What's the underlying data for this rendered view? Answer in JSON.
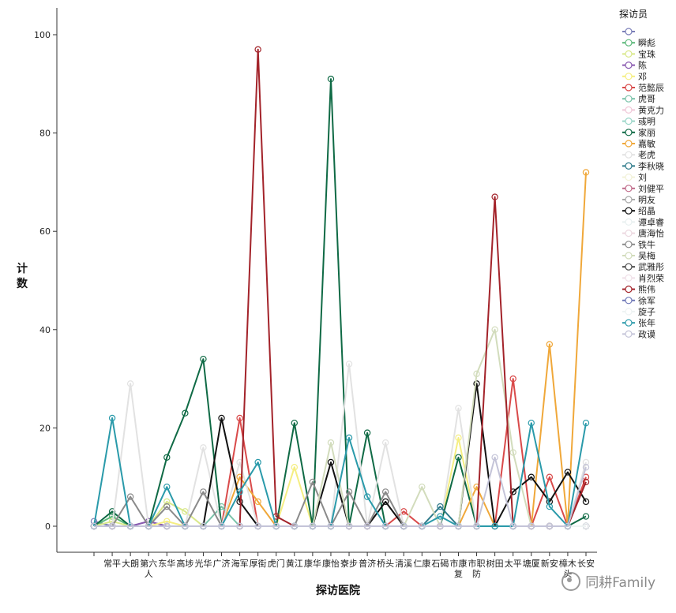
{
  "chart_data": {
    "type": "line",
    "xlabel": "探访医院",
    "ylabel": "计数",
    "ylim": [
      0,
      105
    ],
    "yticks": [
      0,
      20,
      40,
      60,
      80,
      100
    ],
    "grid": false,
    "legend_position": "right",
    "legend_title": "探访员",
    "categories": [
      "",
      "常平",
      "大朗",
      "第六人",
      "东华",
      "高埗",
      "光华",
      "广济",
      "海军",
      "厚街",
      "虎门",
      "黄江",
      "康华",
      "康怡",
      "寮步",
      "普济",
      "桥头",
      "清溪",
      "仁康",
      "石碣",
      "市康复",
      "市职防",
      "树田",
      "太平",
      "塘厦",
      "新安",
      "樟木头",
      "长安"
    ],
    "series": [
      {
        "name": "",
        "color": "#7b7fb8",
        "values": [
          1,
          0,
          0,
          1,
          0,
          0,
          0,
          0,
          0,
          0,
          0,
          0,
          0,
          0,
          0,
          0,
          0,
          0,
          0,
          0,
          0,
          0,
          0,
          0,
          0,
          0,
          0,
          0
        ]
      },
      {
        "name": "瞬彪",
        "color": "#5cb87a",
        "values": [
          0,
          2,
          0,
          0,
          0,
          0,
          0,
          0,
          0,
          0,
          0,
          0,
          0,
          0,
          0,
          0,
          0,
          0,
          0,
          0,
          0,
          0,
          0,
          0,
          0,
          0,
          0,
          0
        ]
      },
      {
        "name": "宝珠",
        "color": "#d9e88a",
        "values": [
          0,
          1,
          0,
          0,
          5,
          3,
          0,
          0,
          0,
          0,
          0,
          0,
          0,
          0,
          0,
          0,
          0,
          0,
          0,
          0,
          0,
          0,
          0,
          0,
          0,
          0,
          0,
          0
        ]
      },
      {
        "name": "陈",
        "color": "#8a5ab0",
        "values": [
          0,
          0,
          0,
          1,
          0,
          0,
          0,
          0,
          0,
          0,
          0,
          0,
          0,
          0,
          0,
          0,
          0,
          0,
          0,
          0,
          0,
          0,
          0,
          0,
          0,
          0,
          0,
          0
        ]
      },
      {
        "name": "邓",
        "color": "#f5ee82",
        "values": [
          0,
          0,
          0,
          0,
          1,
          0,
          0,
          0,
          0,
          0,
          0,
          12,
          0,
          0,
          0,
          0,
          0,
          0,
          0,
          0,
          18,
          0,
          0,
          0,
          0,
          0,
          0,
          0
        ]
      },
      {
        "name": "范懿辰",
        "color": "#d94a4a",
        "values": [
          0,
          0,
          0,
          0,
          0,
          0,
          0,
          0,
          22,
          0,
          0,
          0,
          0,
          0,
          0,
          0,
          0,
          3,
          0,
          0,
          0,
          0,
          0,
          30,
          0,
          10,
          0,
          10
        ]
      },
      {
        "name": "虎哥",
        "color": "#79c2a8",
        "values": [
          0,
          0,
          0,
          0,
          0,
          0,
          0,
          4,
          0,
          0,
          0,
          0,
          0,
          0,
          0,
          0,
          0,
          0,
          0,
          0,
          0,
          0,
          0,
          0,
          0,
          0,
          0,
          0
        ]
      },
      {
        "name": "黄克力",
        "color": "#f0c8d8",
        "values": [
          0,
          0,
          0,
          0,
          0,
          0,
          0,
          0,
          0,
          0,
          0,
          0,
          0,
          0,
          0,
          0,
          0,
          0,
          0,
          0,
          0,
          0,
          0,
          0,
          0,
          0,
          0,
          0
        ]
      },
      {
        "name": "彧明",
        "color": "#9ad6c8",
        "values": [
          0,
          0,
          0,
          0,
          0,
          0,
          0,
          0,
          0,
          0,
          0,
          0,
          0,
          0,
          0,
          0,
          0,
          0,
          0,
          0,
          0,
          0,
          0,
          0,
          0,
          0,
          0,
          0
        ]
      },
      {
        "name": "家丽",
        "color": "#0f6a45",
        "values": [
          0,
          3,
          0,
          0,
          14,
          23,
          34,
          0,
          0,
          0,
          0,
          21,
          0,
          91,
          0,
          19,
          0,
          0,
          0,
          0,
          14,
          0,
          0,
          0,
          0,
          0,
          0,
          2
        ]
      },
      {
        "name": "嘉敏",
        "color": "#f0a83a",
        "values": [
          0,
          0,
          0,
          0,
          0,
          0,
          0,
          0,
          10,
          5,
          0,
          0,
          0,
          0,
          0,
          0,
          0,
          0,
          0,
          0,
          0,
          8,
          0,
          0,
          0,
          37,
          0,
          72
        ]
      },
      {
        "name": "老虎",
        "color": "#e2e2e2",
        "values": [
          0,
          0,
          29,
          0,
          0,
          0,
          16,
          0,
          13,
          0,
          0,
          0,
          0,
          0,
          33,
          0,
          17,
          0,
          0,
          0,
          24,
          0,
          0,
          0,
          0,
          0,
          0,
          13
        ]
      },
      {
        "name": "李秋晓",
        "color": "#2e7a8a",
        "values": [
          0,
          0,
          0,
          0,
          0,
          0,
          0,
          0,
          0,
          0,
          0,
          0,
          0,
          0,
          0,
          0,
          0,
          0,
          0,
          4,
          0,
          0,
          0,
          0,
          0,
          0,
          0,
          0
        ]
      },
      {
        "name": "刘",
        "color": "#f2f2d8",
        "values": [
          0,
          0,
          0,
          0,
          0,
          0,
          0,
          0,
          0,
          0,
          0,
          0,
          0,
          0,
          0,
          0,
          0,
          0,
          0,
          0,
          0,
          0,
          0,
          0,
          0,
          0,
          0,
          0
        ]
      },
      {
        "name": "刘健平",
        "color": "#c06b8a",
        "values": [
          0,
          0,
          0,
          0,
          0,
          0,
          0,
          0,
          0,
          0,
          0,
          0,
          0,
          0,
          0,
          0,
          0,
          0,
          0,
          0,
          0,
          0,
          0,
          0,
          0,
          0,
          0,
          0
        ]
      },
      {
        "name": "明友",
        "color": "#a9a9a9",
        "values": [
          0,
          0,
          0,
          0,
          0,
          0,
          0,
          0,
          0,
          0,
          0,
          0,
          0,
          0,
          0,
          0,
          0,
          0,
          0,
          0,
          0,
          0,
          0,
          0,
          0,
          0,
          0,
          0
        ]
      },
      {
        "name": "绍晶",
        "color": "#111111",
        "values": [
          0,
          0,
          0,
          0,
          0,
          0,
          0,
          22,
          5,
          0,
          0,
          0,
          0,
          13,
          0,
          0,
          5,
          0,
          0,
          0,
          0,
          29,
          0,
          7,
          10,
          5,
          11,
          5
        ]
      },
      {
        "name": "谭卓睿",
        "color": "#e8f0f0",
        "values": [
          0,
          0,
          0,
          0,
          0,
          0,
          0,
          0,
          0,
          0,
          0,
          0,
          0,
          0,
          0,
          0,
          0,
          0,
          0,
          0,
          0,
          0,
          0,
          0,
          0,
          0,
          0,
          0
        ]
      },
      {
        "name": "唐海怡",
        "color": "#ecd8e0",
        "values": [
          0,
          0,
          0,
          0,
          0,
          0,
          0,
          0,
          0,
          0,
          0,
          0,
          0,
          0,
          0,
          0,
          0,
          0,
          0,
          0,
          0,
          0,
          0,
          0,
          0,
          0,
          0,
          0
        ]
      },
      {
        "name": "铁牛",
        "color": "#8a8a8a",
        "values": [
          0,
          0,
          6,
          0,
          4,
          0,
          7,
          0,
          0,
          0,
          0,
          0,
          9,
          0,
          7,
          0,
          7,
          0,
          0,
          0,
          0,
          0,
          0,
          0,
          0,
          0,
          0,
          0
        ]
      },
      {
        "name": "吴梅",
        "color": "#d2dcbc",
        "values": [
          0,
          0,
          0,
          0,
          0,
          0,
          0,
          0,
          0,
          0,
          0,
          0,
          0,
          17,
          0,
          0,
          0,
          0,
          8,
          0,
          0,
          31,
          40,
          15,
          0,
          0,
          0,
          0
        ]
      },
      {
        "name": "武雅彤",
        "color": "#4a4a4a",
        "values": [
          0,
          0,
          0,
          0,
          0,
          0,
          0,
          0,
          0,
          0,
          0,
          0,
          0,
          0,
          0,
          0,
          0,
          0,
          0,
          0,
          0,
          0,
          0,
          0,
          0,
          0,
          0,
          0
        ]
      },
      {
        "name": "肖烈荣",
        "color": "#f0e0e8",
        "values": [
          0,
          0,
          0,
          0,
          0,
          0,
          0,
          0,
          0,
          0,
          0,
          0,
          0,
          0,
          0,
          0,
          0,
          0,
          0,
          0,
          0,
          0,
          0,
          0,
          0,
          0,
          0,
          0
        ]
      },
      {
        "name": "熊伟",
        "color": "#a3232a",
        "values": [
          0,
          0,
          0,
          0,
          0,
          0,
          0,
          0,
          0,
          97,
          2,
          0,
          0,
          0,
          0,
          0,
          0,
          0,
          0,
          0,
          0,
          0,
          67,
          0,
          0,
          0,
          0,
          9
        ]
      },
      {
        "name": "徐军",
        "color": "#7079b8",
        "values": [
          0,
          0,
          0,
          0,
          0,
          0,
          0,
          0,
          0,
          0,
          0,
          0,
          0,
          0,
          0,
          0,
          0,
          0,
          0,
          0,
          0,
          0,
          0,
          0,
          0,
          0,
          0,
          0
        ]
      },
      {
        "name": "旋子",
        "color": "#eef3f3",
        "values": [
          0,
          0,
          0,
          0,
          0,
          0,
          0,
          0,
          0,
          0,
          0,
          0,
          0,
          0,
          0,
          0,
          0,
          0,
          0,
          0,
          0,
          0,
          0,
          0,
          0,
          0,
          0,
          0
        ]
      },
      {
        "name": "张年",
        "color": "#2a9aaa",
        "values": [
          0,
          22,
          0,
          0,
          8,
          0,
          0,
          0,
          7,
          13,
          0,
          0,
          0,
          0,
          18,
          6,
          0,
          0,
          0,
          2,
          0,
          0,
          0,
          0,
          21,
          4,
          0,
          21
        ]
      },
      {
        "name": "政谟",
        "color": "#c4c4d8",
        "values": [
          0,
          0,
          0,
          0,
          0,
          0,
          0,
          0,
          0,
          0,
          0,
          0,
          0,
          0,
          0,
          0,
          0,
          0,
          0,
          0,
          0,
          0,
          14,
          0,
          0,
          0,
          0,
          12
        ]
      }
    ]
  },
  "watermark": {
    "text": "同耕Family",
    "icon": "wechat-icon"
  }
}
